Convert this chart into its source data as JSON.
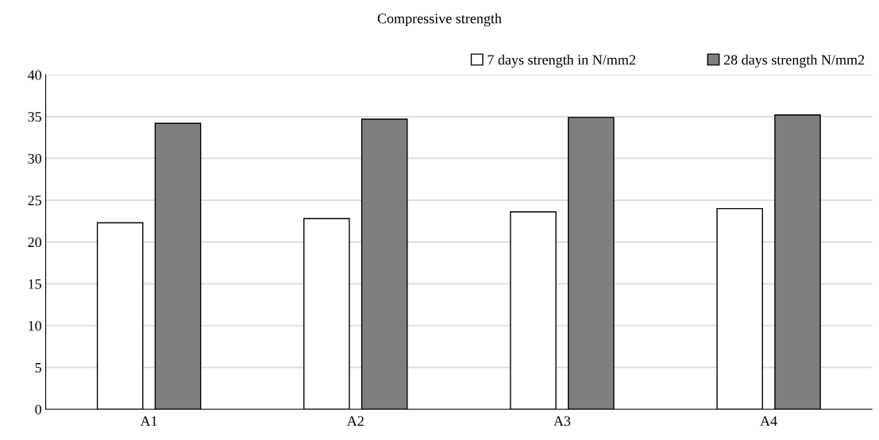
{
  "chart_data": {
    "type": "bar",
    "title": "Compressive strength",
    "categories": [
      "A1",
      "A2",
      "A3",
      "A4"
    ],
    "series": [
      {
        "name": "7 days strength in N/mm2",
        "color": "#ffffff",
        "values": [
          22.3,
          22.8,
          23.6,
          24.0
        ]
      },
      {
        "name": "28 days strength N/mm2",
        "color": "#7f7f7f",
        "values": [
          34.2,
          34.7,
          34.9,
          35.2
        ]
      }
    ],
    "ylim": [
      0,
      40
    ],
    "yticks": [
      0,
      5,
      10,
      15,
      20,
      25,
      30,
      35,
      40
    ],
    "grid": "y",
    "legend": "top right"
  }
}
